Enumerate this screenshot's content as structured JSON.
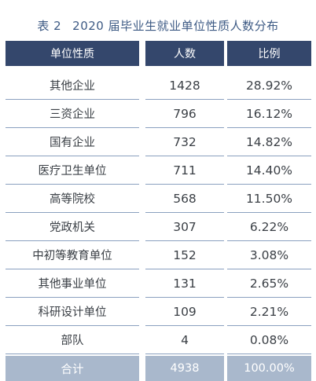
{
  "caption": {
    "number": "表 2",
    "title": "2020 届毕业生就业单位性质人数分布"
  },
  "table": {
    "headers": [
      "单位性质",
      "人数",
      "比例"
    ],
    "rows": [
      [
        "其他企业",
        "1428",
        "28.92%"
      ],
      [
        "三资企业",
        "796",
        "16.12%"
      ],
      [
        "国有企业",
        "732",
        "14.82%"
      ],
      [
        "医疗卫生单位",
        "711",
        "14.40%"
      ],
      [
        "高等院校",
        "568",
        "11.50%"
      ],
      [
        "党政机关",
        "307",
        "6.22%"
      ],
      [
        "中初等教育单位",
        "152",
        "3.08%"
      ],
      [
        "其他事业单位",
        "131",
        "2.65%"
      ],
      [
        "科研设计单位",
        "109",
        "2.21%"
      ],
      [
        "部队",
        "4",
        "0.08%"
      ]
    ],
    "total": [
      "合计",
      "4938",
      "100.00%"
    ]
  },
  "colors": {
    "header_bg": "#34476c",
    "total_bg": "#a9b8cc",
    "caption_text": "#3d5a84",
    "row_rule": "#8aa0bf"
  }
}
